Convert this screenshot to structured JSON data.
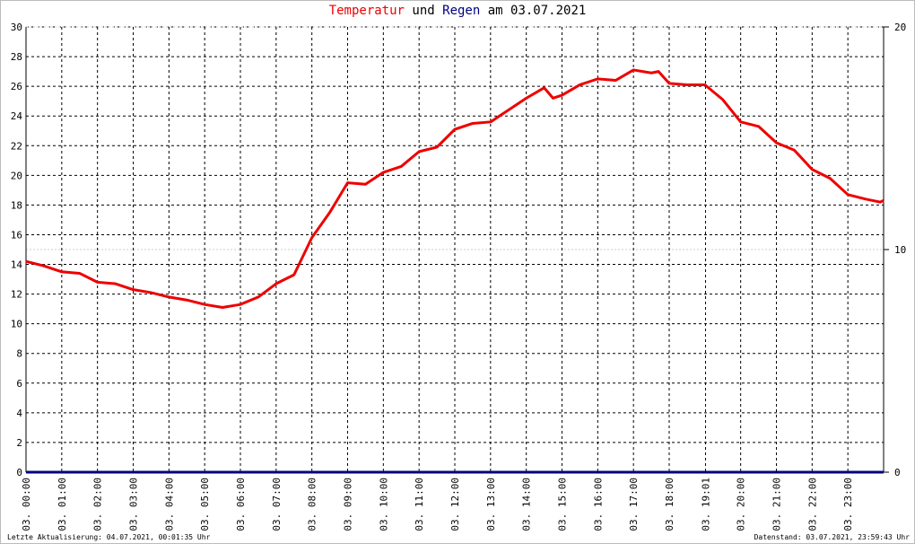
{
  "chart_data": {
    "type": "line",
    "title_connector": "und",
    "title_suffix": "am 03.07.2021",
    "footer_left": "Letzte Aktualisierung: 04.07.2021, 00:01:35 Uhr",
    "footer_right": "Datenstand: 03.07.2021, 23:59:43 Uhr",
    "xlim": [
      0,
      24
    ],
    "xticks": [
      {
        "value": 0,
        "label": "03. 00:00"
      },
      {
        "value": 1,
        "label": "03. 01:00"
      },
      {
        "value": 2,
        "label": "03. 02:00"
      },
      {
        "value": 3,
        "label": "03. 03:00"
      },
      {
        "value": 4,
        "label": "03. 04:00"
      },
      {
        "value": 5,
        "label": "03. 05:00"
      },
      {
        "value": 6,
        "label": "03. 06:00"
      },
      {
        "value": 7,
        "label": "03. 07:00"
      },
      {
        "value": 8,
        "label": "03. 08:00"
      },
      {
        "value": 9,
        "label": "03. 09:00"
      },
      {
        "value": 10,
        "label": "03. 10:00"
      },
      {
        "value": 11,
        "label": "03. 11:00"
      },
      {
        "value": 12,
        "label": "03. 12:00"
      },
      {
        "value": 13,
        "label": "03. 13:00"
      },
      {
        "value": 14,
        "label": "03. 14:00"
      },
      {
        "value": 15,
        "label": "03. 15:00"
      },
      {
        "value": 16,
        "label": "03. 16:00"
      },
      {
        "value": 17,
        "label": "03. 17:00"
      },
      {
        "value": 18,
        "label": "03. 18:00"
      },
      {
        "value": 19.017,
        "label": "03. 19:01"
      },
      {
        "value": 20,
        "label": "03. 20:00"
      },
      {
        "value": 21,
        "label": "03. 21:00"
      },
      {
        "value": 22,
        "label": "03. 22:00"
      },
      {
        "value": 23,
        "label": "03. 23:00"
      }
    ],
    "ylim": [
      0,
      30
    ],
    "yticks": [
      0,
      2,
      4,
      6,
      8,
      10,
      12,
      14,
      16,
      18,
      20,
      22,
      24,
      26,
      28,
      30
    ],
    "y2lim": [
      0,
      20
    ],
    "y2ticks": [
      0,
      10,
      20
    ],
    "grid": true,
    "series": [
      {
        "name": "Temperatur",
        "color": "#ee0000",
        "x": [
          0,
          0.5,
          1,
          1.5,
          2,
          2.5,
          3,
          3.5,
          4,
          4.5,
          5,
          5.5,
          6,
          6.5,
          7,
          7.5,
          8,
          8.5,
          9,
          9.5,
          10,
          10.5,
          11,
          11.5,
          12,
          12.5,
          13,
          13.5,
          14,
          14.5,
          14.75,
          15,
          15.5,
          16,
          16.5,
          17,
          17.5,
          17.7,
          18,
          18.5,
          19,
          19.5,
          20,
          20.5,
          21,
          21.5,
          22,
          22.5,
          23,
          23.5,
          23.9,
          24
        ],
        "values": [
          14.2,
          13.9,
          13.5,
          13.4,
          12.8,
          12.7,
          12.3,
          12.1,
          11.8,
          11.6,
          11.3,
          11.1,
          11.3,
          11.8,
          12.7,
          13.3,
          15.8,
          17.5,
          19.5,
          19.4,
          20.2,
          20.6,
          21.6,
          21.9,
          23.1,
          23.5,
          23.6,
          24.4,
          25.2,
          25.9,
          25.2,
          25.4,
          26.1,
          26.5,
          26.4,
          27.1,
          26.9,
          27.0,
          26.2,
          26.1,
          26.1,
          25.1,
          23.6,
          23.3,
          22.2,
          21.7,
          20.4,
          19.8,
          18.7,
          18.4,
          18.2,
          18.3
        ]
      },
      {
        "name": "Regen",
        "color": "#000080",
        "axis": "y2",
        "x": [
          0,
          24
        ],
        "values": [
          0,
          0
        ]
      }
    ]
  }
}
